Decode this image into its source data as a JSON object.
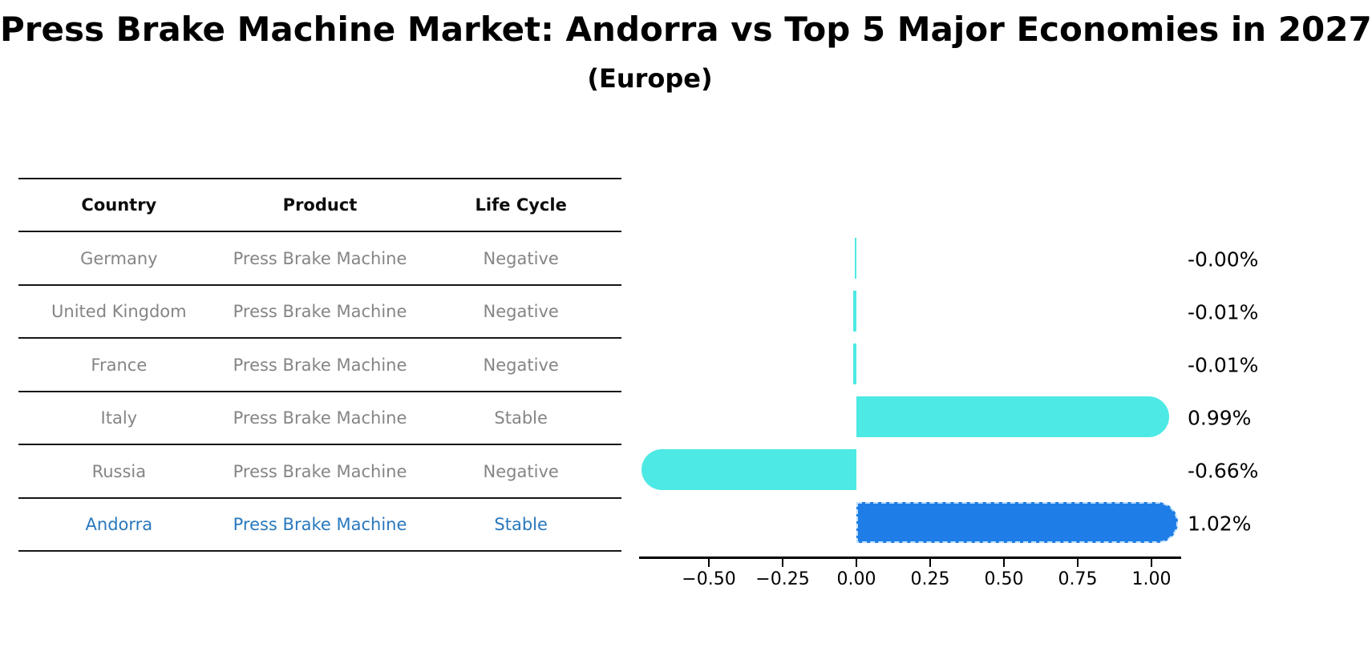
{
  "chart_data": {
    "type": "bar",
    "orientation": "horizontal",
    "title": "Press Brake Machine Market: Andorra vs Top 5 Major Economies in 2027",
    "subtitle": "(Europe)",
    "categories": [
      "Germany",
      "United Kingdom",
      "France",
      "Italy",
      "Russia",
      "Andorra"
    ],
    "values": [
      -0.003,
      -0.01,
      -0.01,
      0.99,
      -0.66,
      1.02
    ],
    "value_labels": [
      "-0.00%",
      "-0.01%",
      "-0.01%",
      "0.99%",
      "-0.66%",
      "1.02%"
    ],
    "x_ticks": [
      -0.5,
      -0.25,
      0.0,
      0.25,
      0.5,
      0.75,
      1.0
    ],
    "x_tick_labels": [
      "−0.50",
      "−0.25",
      "0.00",
      "0.25",
      "0.50",
      "0.75",
      "1.00"
    ],
    "xlim": [
      -0.74,
      1.1
    ],
    "highlight_index": 5,
    "grid": false,
    "legend": false,
    "colors": {
      "default_bar": "#4DE9E4",
      "highlight_bar": "#1E7DE6",
      "highlight_bar_border": "#BFE0FF",
      "axis": "#000000",
      "value_text": "#000000"
    }
  },
  "table": {
    "columns": [
      "Country",
      "Product",
      "Life Cycle"
    ],
    "rows": [
      {
        "country": "Germany",
        "product": "Press Brake Machine",
        "life_cycle": "Negative"
      },
      {
        "country": "United Kingdom",
        "product": "Press Brake Machine",
        "life_cycle": "Negative"
      },
      {
        "country": "France",
        "product": "Press Brake Machine",
        "life_cycle": "Negative"
      },
      {
        "country": "Italy",
        "product": "Press Brake Machine",
        "life_cycle": "Stable"
      },
      {
        "country": "Russia",
        "product": "Press Brake Machine",
        "life_cycle": "Negative"
      },
      {
        "country": "Andorra",
        "product": "Press Brake Machine",
        "life_cycle": "Stable"
      }
    ],
    "colors": {
      "row_text": "#858585",
      "header_text": "#0d0d0d",
      "highlight_text": "#2878BE",
      "line": "#161616"
    }
  }
}
